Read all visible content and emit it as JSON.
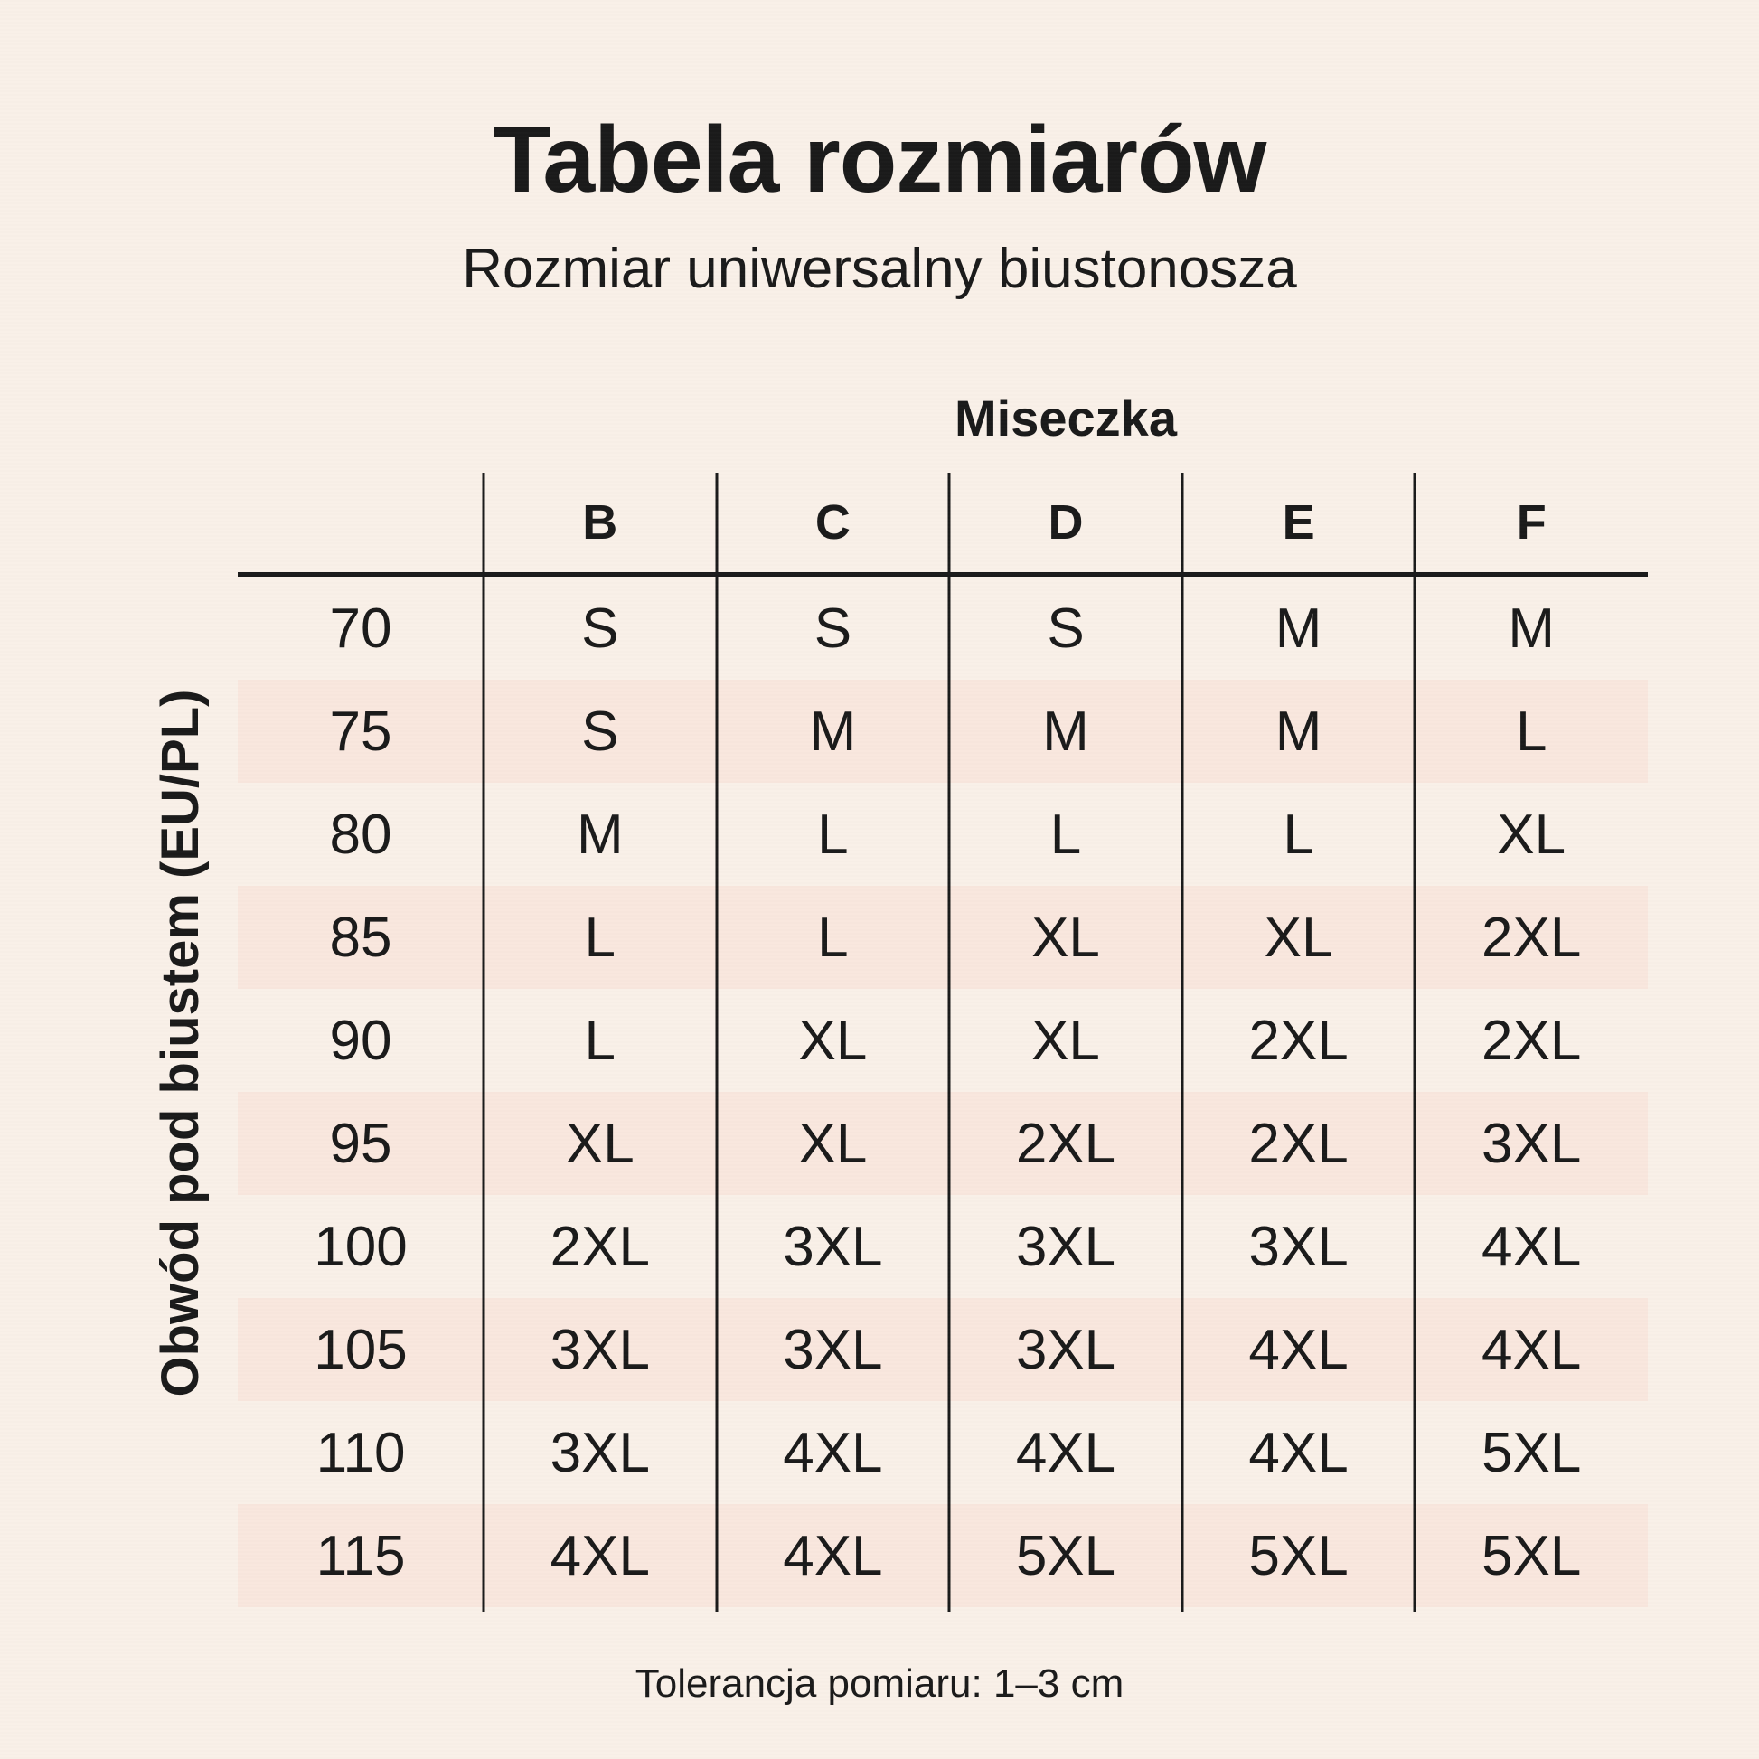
{
  "chart_data": {
    "type": "table",
    "title": "Tabela rozmiarów",
    "subtitle": "Rozmiar uniwersalny biustonosza",
    "column_group_label": "Miseczka",
    "row_axis_label": "Obwód pod biustem (EU/PL)",
    "columns": [
      "B",
      "C",
      "D",
      "E",
      "F"
    ],
    "rows": [
      {
        "label": "70",
        "cells": [
          "S",
          "S",
          "S",
          "M",
          "M"
        ]
      },
      {
        "label": "75",
        "cells": [
          "S",
          "M",
          "M",
          "M",
          "L"
        ]
      },
      {
        "label": "80",
        "cells": [
          "M",
          "L",
          "L",
          "L",
          "XL"
        ]
      },
      {
        "label": "85",
        "cells": [
          "L",
          "L",
          "XL",
          "XL",
          "2XL"
        ]
      },
      {
        "label": "90",
        "cells": [
          "L",
          "XL",
          "XL",
          "2XL",
          "2XL"
        ]
      },
      {
        "label": "95",
        "cells": [
          "XL",
          "XL",
          "2XL",
          "2XL",
          "3XL"
        ]
      },
      {
        "label": "100",
        "cells": [
          "2XL",
          "3XL",
          "3XL",
          "3XL",
          "4XL"
        ]
      },
      {
        "label": "105",
        "cells": [
          "3XL",
          "3XL",
          "3XL",
          "4XL",
          "4XL"
        ]
      },
      {
        "label": "110",
        "cells": [
          "3XL",
          "4XL",
          "4XL",
          "4XL",
          "5XL"
        ]
      },
      {
        "label": "115",
        "cells": [
          "4XL",
          "4XL",
          "5XL",
          "5XL",
          "5XL"
        ]
      }
    ],
    "footnote": "Tolerancja pomiaru: 1–3 cm",
    "layout": {
      "legend": "none",
      "grid": "internal column dividers + header rule",
      "shaded_row_labels": [
        "75",
        "85",
        "95",
        "105",
        "115"
      ]
    }
  },
  "colors": {
    "background": "#f9f0e8",
    "row_shaded": "#f9e7de",
    "text": "#1a1a1a",
    "rule": "#1a1a1a"
  }
}
